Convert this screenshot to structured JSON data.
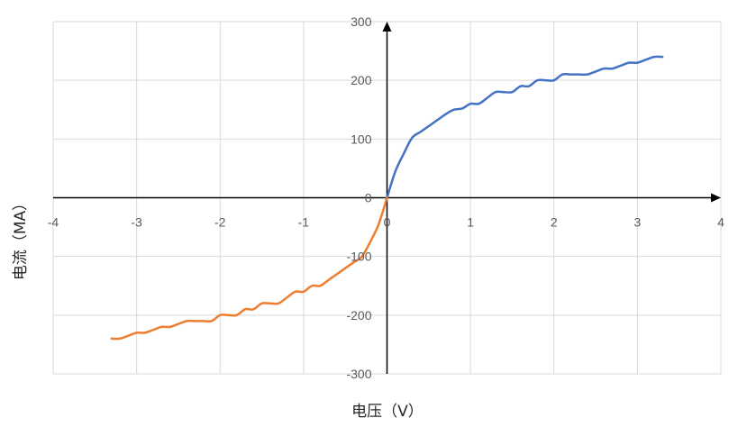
{
  "chart_data": {
    "type": "line",
    "title": "",
    "xlabel": "电压（V）",
    "ylabel": "电流（MA）",
    "xlim": [
      -4,
      4
    ],
    "ylim": [
      -300,
      300
    ],
    "x_ticks": [
      -4,
      -3,
      -2,
      -1,
      0,
      1,
      2,
      3,
      4
    ],
    "y_ticks": [
      -300,
      -200,
      -100,
      0,
      100,
      200,
      300
    ],
    "x_tick_labels": [
      "-4",
      "-3",
      "-2",
      "-1",
      "0",
      "1",
      "2",
      "3",
      "4"
    ],
    "y_tick_labels": [
      "-300",
      "-200",
      "-100",
      "0",
      "100",
      "200",
      "300"
    ],
    "grid": true,
    "legend": "none",
    "series": [
      {
        "color": "#4472C4",
        "x": [
          0,
          0.1,
          0.2,
          0.3,
          0.4,
          0.5,
          0.6,
          0.7,
          0.8,
          0.9,
          1.0,
          1.1,
          1.2,
          1.3,
          1.4,
          1.5,
          1.6,
          1.7,
          1.8,
          1.9,
          2.0,
          2.1,
          2.2,
          2.3,
          2.4,
          2.5,
          2.6,
          2.7,
          2.8,
          2.9,
          3.0,
          3.1,
          3.2,
          3.3
        ],
        "y": [
          0,
          45,
          75,
          102,
          112,
          122,
          132,
          142,
          150,
          152,
          160,
          160,
          170,
          180,
          180,
          180,
          190,
          190,
          200,
          200,
          200,
          210,
          210,
          210,
          210,
          215,
          220,
          220,
          225,
          230,
          230,
          235,
          240,
          240
        ]
      },
      {
        "color": "#ED7D31",
        "x": [
          -3.3,
          -3.2,
          -3.1,
          -3.0,
          -2.9,
          -2.8,
          -2.7,
          -2.6,
          -2.5,
          -2.4,
          -2.3,
          -2.2,
          -2.1,
          -2.0,
          -1.9,
          -1.8,
          -1.7,
          -1.6,
          -1.5,
          -1.4,
          -1.3,
          -1.2,
          -1.1,
          -1.0,
          -0.9,
          -0.8,
          -0.7,
          -0.6,
          -0.5,
          -0.4,
          -0.3,
          -0.2,
          -0.1,
          0
        ],
        "y": [
          -240,
          -240,
          -235,
          -230,
          -230,
          -225,
          -220,
          -220,
          -215,
          -210,
          -210,
          -210,
          -210,
          -200,
          -200,
          -200,
          -190,
          -190,
          -180,
          -180,
          -180,
          -170,
          -160,
          -160,
          -150,
          -150,
          -140,
          -130,
          -120,
          -110,
          -100,
          -75,
          -45,
          0
        ]
      }
    ]
  }
}
